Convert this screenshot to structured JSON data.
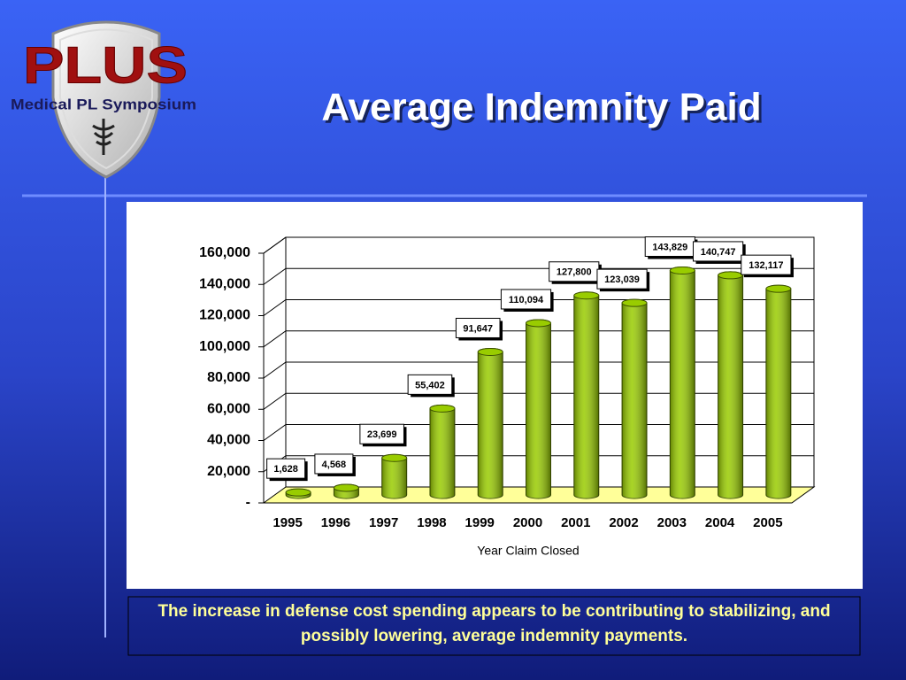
{
  "logo": {
    "title": "PLUS",
    "subtitle": "Medical PL Symposium"
  },
  "chart_data": {
    "type": "bar",
    "title": "Average Indemnity Paid",
    "categories": [
      "1995",
      "1996",
      "1997",
      "1998",
      "1999",
      "2000",
      "2001",
      "2002",
      "2003",
      "2004",
      "2005"
    ],
    "values": [
      1628,
      4568,
      23699,
      55402,
      91647,
      110094,
      127800,
      123039,
      143829,
      140747,
      132117
    ],
    "value_labels": [
      "1,628",
      "4,568",
      "23,699",
      "55,402",
      "91,647",
      "110,094",
      "127,800",
      "123,039",
      "143,829",
      "140,747",
      "132,117"
    ],
    "color": "#99cc00",
    "x_label": "Year Claim Closed",
    "ylim": [
      0,
      160000
    ],
    "yticks": [
      {
        "value": 0,
        "label": "-"
      },
      {
        "value": 20000,
        "label": "20,000"
      },
      {
        "value": 40000,
        "label": "40,000"
      },
      {
        "value": 60000,
        "label": "60,000"
      },
      {
        "value": 80000,
        "label": "80,000"
      },
      {
        "value": 100000,
        "label": "100,000"
      },
      {
        "value": 120000,
        "label": "120,000"
      },
      {
        "value": 140000,
        "label": "140,000"
      },
      {
        "value": 160000,
        "label": "160,000"
      }
    ],
    "grid": true
  },
  "caption": "The increase in defense cost spending appears to be contributing to stabilizing, and possibly lowering, average indemnity payments."
}
